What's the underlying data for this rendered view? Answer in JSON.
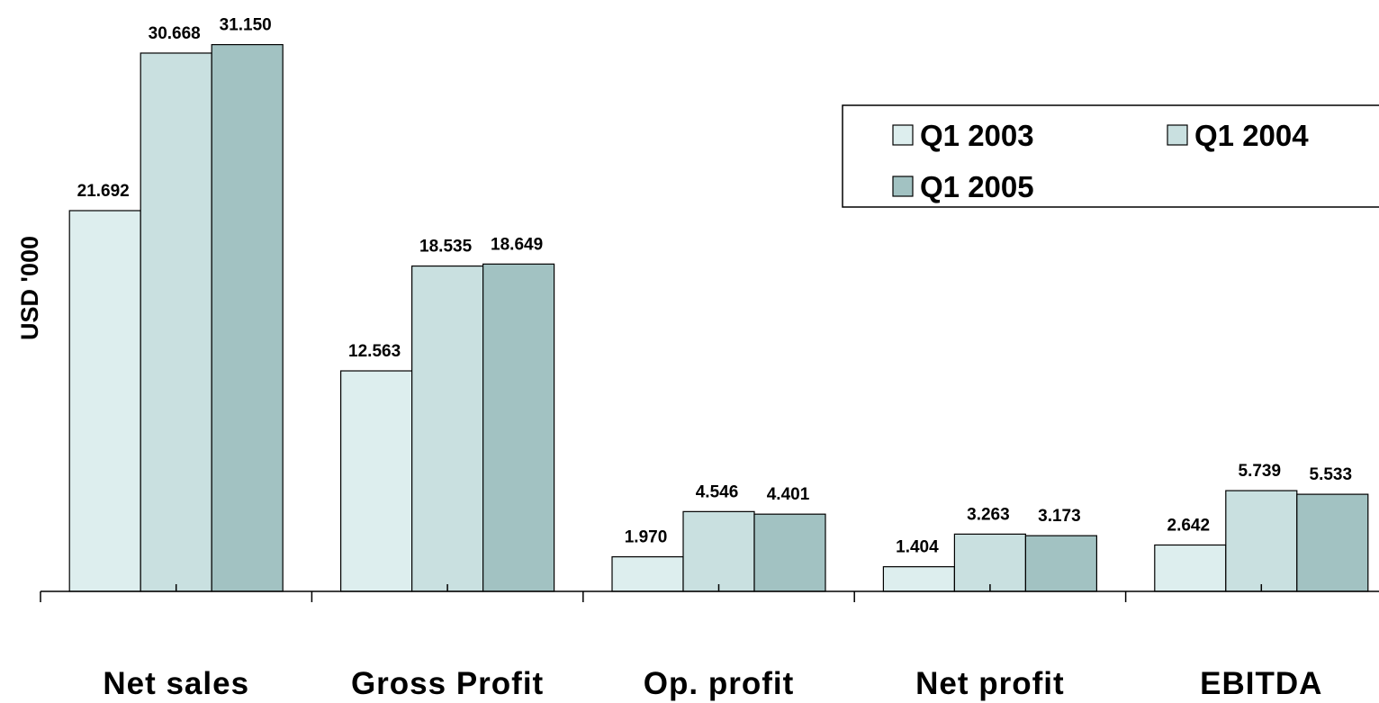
{
  "chart_data": {
    "type": "bar",
    "ylabel": "USD '000",
    "categories": [
      "Net sales",
      "Gross Profit",
      "Op. profit",
      "Net profit",
      "EBITDA"
    ],
    "series": [
      {
        "name": "Q1 2003",
        "color": "#ddeeee",
        "values": [
          21692,
          12563,
          1970,
          1404,
          2642
        ],
        "value_labels": [
          "21.692",
          "12.563",
          "1.970",
          "1.404",
          "2.642"
        ]
      },
      {
        "name": "Q1 2004",
        "color": "#c9e0e0",
        "values": [
          30668,
          18535,
          4546,
          3263,
          5739
        ],
        "value_labels": [
          "30.668",
          "18.535",
          "4.546",
          "3.263",
          "5.739"
        ]
      },
      {
        "name": "Q1 2005",
        "color": "#a2c2c2",
        "values": [
          31150,
          18649,
          4401,
          3173,
          5533
        ],
        "value_labels": [
          "31.150",
          "18.649",
          "4.401",
          "3.173",
          "5.533"
        ]
      }
    ],
    "ylim": [
      0,
      32000
    ],
    "legend": "upper right"
  }
}
